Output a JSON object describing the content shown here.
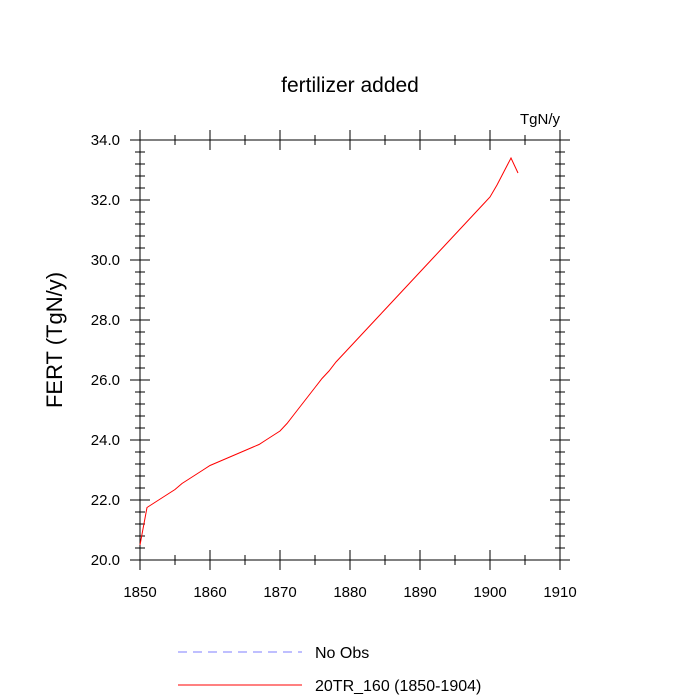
{
  "chart_data": {
    "type": "line",
    "title": "fertilizer added",
    "units": "TgN/y",
    "ylabel": "FERT  (TgN/y)",
    "xlabel": "",
    "xlim": [
      1850,
      1910
    ],
    "ylim": [
      20.0,
      34.0
    ],
    "xticks": [
      1850,
      1860,
      1870,
      1880,
      1890,
      1900,
      1910
    ],
    "xtick_labels": [
      "1850",
      "1860",
      "1870",
      "1880",
      "1890",
      "1900",
      "1910"
    ],
    "yticks": [
      20.0,
      22.0,
      24.0,
      26.0,
      28.0,
      30.0,
      32.0,
      34.0
    ],
    "ytick_labels": [
      "20.0",
      "22.0",
      "24.0",
      "26.0",
      "28.0",
      "30.0",
      "32.0",
      "34.0"
    ],
    "legend_placement": "bottom",
    "series": [
      {
        "name": "No Obs",
        "color": "#7f7fff",
        "dash": "dashed",
        "x": [],
        "y": []
      },
      {
        "name": "20TR_160 (1850-1904)",
        "color": "#ff0000",
        "dash": "solid",
        "x": [
          1850,
          1851,
          1852,
          1853,
          1854,
          1855,
          1856,
          1857,
          1858,
          1859,
          1860,
          1861,
          1862,
          1863,
          1864,
          1865,
          1866,
          1867,
          1868,
          1869,
          1870,
          1871,
          1872,
          1873,
          1874,
          1875,
          1876,
          1877,
          1878,
          1879,
          1880,
          1881,
          1882,
          1883,
          1884,
          1885,
          1886,
          1887,
          1888,
          1889,
          1890,
          1891,
          1892,
          1893,
          1894,
          1895,
          1896,
          1897,
          1898,
          1899,
          1900,
          1901,
          1902,
          1903,
          1904
        ],
        "y": [
          20.5,
          21.75,
          21.9,
          22.05,
          22.2,
          22.35,
          22.55,
          22.7,
          22.85,
          23.0,
          23.15,
          23.25,
          23.35,
          23.45,
          23.55,
          23.65,
          23.75,
          23.85,
          24.0,
          24.15,
          24.3,
          24.55,
          24.85,
          25.15,
          25.45,
          25.75,
          26.05,
          26.3,
          26.6,
          26.85,
          27.1,
          27.35,
          27.6,
          27.85,
          28.1,
          28.35,
          28.6,
          28.85,
          29.1,
          29.35,
          29.6,
          29.85,
          30.1,
          30.35,
          30.6,
          30.85,
          31.1,
          31.35,
          31.6,
          31.85,
          32.1,
          32.5,
          32.95,
          33.4,
          32.9
        ]
      }
    ]
  }
}
